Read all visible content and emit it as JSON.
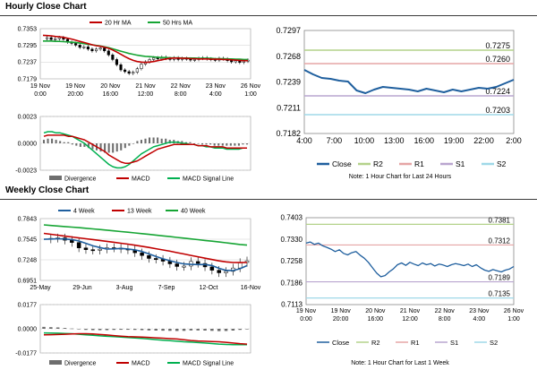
{
  "titles": {
    "hourly": "Hourly Close Chart",
    "weekly": "Weekly Close Chart"
  },
  "colors": {
    "close": "#1f5f9e",
    "ma20": "#c00000",
    "ma50": "#16a534",
    "candle": "#000000",
    "macd": "#00b050",
    "signal": "#c00000",
    "r2": "#b4d28a",
    "r1": "#e5a5a5",
    "s1": "#b9a5cf",
    "s2": "#9fd8e8",
    "hist": "#6d6d6d",
    "grid": "#cfcfcf"
  },
  "chart_data": [
    {
      "id": "hourly-price",
      "type": "line",
      "legend": [
        "20 Hr MA",
        "50 Hrs MA"
      ],
      "yticks": [
        "0.7353",
        "0.7295",
        "0.7237",
        "0.7179"
      ],
      "ylim": [
        0.7179,
        0.7353
      ],
      "xticks": [
        [
          "19 Nov",
          "0:00"
        ],
        [
          "19 Nov",
          "20:00"
        ],
        [
          "20 Nov",
          "16:00"
        ],
        [
          "21 Nov",
          "12:00"
        ],
        [
          "22 Nov",
          "8:00"
        ],
        [
          "23 Nov",
          "4:00"
        ],
        [
          "26 Nov",
          "1:00"
        ]
      ],
      "series": [
        {
          "name": "Close",
          "values": [
            0.7318,
            0.7322,
            0.7315,
            0.7318,
            0.7322,
            0.7316,
            0.7306,
            0.7302,
            0.7296,
            0.7288,
            0.729,
            0.7282,
            0.7276,
            0.7282,
            0.7286,
            0.7276,
            0.7262,
            0.7246,
            0.7228,
            0.721,
            0.7204,
            0.7198,
            0.7202,
            0.7214,
            0.723,
            0.7238,
            0.7246,
            0.7252,
            0.7248,
            0.7254,
            0.725,
            0.7246,
            0.7252,
            0.7246,
            0.725,
            0.7248,
            0.7244,
            0.7246,
            0.725,
            0.7252,
            0.7248,
            0.7246,
            0.7244,
            0.725,
            0.7248,
            0.7242,
            0.7238,
            0.7242,
            0.7236,
            0.724,
            0.7244
          ]
        },
        {
          "name": "20 Hr MA",
          "values": [
            0.733,
            0.7329,
            0.7328,
            0.7326,
            0.7325,
            0.7323,
            0.732,
            0.7317,
            0.7313,
            0.7309,
            0.7305,
            0.7301,
            0.7297,
            0.7294,
            0.7292,
            0.7289,
            0.7285,
            0.7279,
            0.7272,
            0.7264,
            0.7256,
            0.7249,
            0.7243,
            0.7239,
            0.7237,
            0.7236,
            0.7237,
            0.7239,
            0.7242,
            0.7245,
            0.7248,
            0.725,
            0.7251,
            0.7251,
            0.725,
            0.725,
            0.7249,
            0.7249,
            0.7248,
            0.7248,
            0.7248,
            0.7247,
            0.7247,
            0.7247,
            0.7246,
            0.7246,
            0.7245,
            0.7244,
            0.7243,
            0.7242,
            0.7242
          ]
        },
        {
          "name": "50 Hrs MA",
          "values": [
            0.731,
            0.731,
            0.731,
            0.7309,
            0.7309,
            0.7308,
            0.7307,
            0.7306,
            0.7305,
            0.7303,
            0.7301,
            0.7299,
            0.7297,
            0.7295,
            0.7293,
            0.729,
            0.7287,
            0.7283,
            0.7279,
            0.7275,
            0.7271,
            0.7267,
            0.7264,
            0.7261,
            0.7259,
            0.7257,
            0.7256,
            0.7255,
            0.7254,
            0.7253,
            0.7253,
            0.7252,
            0.7252,
            0.7252,
            0.7251,
            0.7251,
            0.7251,
            0.7251,
            0.725,
            0.725,
            0.725,
            0.725,
            0.7249,
            0.7249,
            0.7249,
            0.7248,
            0.7248,
            0.7247,
            0.7247,
            0.7246,
            0.7246
          ]
        }
      ]
    },
    {
      "id": "hourly-macd",
      "type": "bar",
      "legend": [
        "Divergence",
        "MACD",
        "MACD Signal Line"
      ],
      "yticks": [
        "0.0023",
        "0.0000",
        "-0.0023"
      ],
      "ylim": [
        -0.0023,
        0.0023
      ],
      "series": [
        {
          "name": "Divergence",
          "values": [
            0.0003,
            0.0004,
            0.0004,
            0.0003,
            0.0002,
            0.0001,
            0.0001,
            -0.0001,
            -0.0002,
            -0.0003,
            -0.0003,
            -0.0004,
            -0.0005,
            -0.0006,
            -0.0007,
            -0.0008,
            -0.0008,
            -0.0008,
            -0.0007,
            -0.0006,
            -0.0004,
            -0.0002,
            0.0,
            0.0002,
            0.0003,
            0.0004,
            0.0005,
            0.0005,
            0.0005,
            0.0004,
            0.0004,
            0.0003,
            0.0003,
            0.0002,
            0.0002,
            0.0001,
            0.0001,
            0.0,
            0.0,
            -0.0001,
            -0.0001,
            -0.0001,
            -0.0002,
            -0.0002,
            -0.0002,
            -0.0002,
            -0.0002,
            -0.0002,
            -0.0002,
            -0.0001,
            -0.0001
          ]
        },
        {
          "name": "MACD",
          "values": [
            0.0009,
            0.001,
            0.001,
            0.0009,
            0.0009,
            0.0008,
            0.0007,
            0.0006,
            0.0004,
            0.0002,
            0.0,
            -0.0003,
            -0.0006,
            -0.0009,
            -0.0012,
            -0.0015,
            -0.0018,
            -0.002,
            -0.0021,
            -0.0021,
            -0.002,
            -0.0018,
            -0.0015,
            -0.0012,
            -0.0009,
            -0.0007,
            -0.0005,
            -0.0003,
            -0.0002,
            -0.0001,
            0.0,
            0.0001,
            0.0001,
            0.0001,
            0.0,
            0.0,
            -0.0001,
            -0.0001,
            -0.0002,
            -0.0002,
            -0.0003,
            -0.0003,
            -0.0004,
            -0.0004,
            -0.0004,
            -0.0005,
            -0.0005,
            -0.0005,
            -0.0005,
            -0.0004,
            -0.0004
          ]
        },
        {
          "name": "MACD Signal Line",
          "values": [
            0.0006,
            0.0007,
            0.0007,
            0.0007,
            0.0007,
            0.0007,
            0.0006,
            0.0006,
            0.0005,
            0.0004,
            0.0003,
            0.0001,
            -0.0001,
            -0.0003,
            -0.0005,
            -0.0007,
            -0.001,
            -0.0012,
            -0.0014,
            -0.0016,
            -0.0017,
            -0.0017,
            -0.0016,
            -0.0015,
            -0.0013,
            -0.0011,
            -0.0009,
            -0.0007,
            -0.0005,
            -0.0004,
            -0.0003,
            -0.0002,
            -0.0001,
            -0.0001,
            -0.0001,
            -0.0001,
            -0.0001,
            -0.0001,
            -0.0002,
            -0.0002,
            -0.0002,
            -0.0003,
            -0.0003,
            -0.0003,
            -0.0003,
            -0.0004,
            -0.0004,
            -0.0004,
            -0.0004,
            -0.0004,
            -0.0004
          ]
        }
      ]
    },
    {
      "id": "hourly-24h",
      "type": "line",
      "yticks": [
        "0.7297",
        "0.7268",
        "0.7239",
        "0.7211",
        "0.7182"
      ],
      "ylim": [
        0.7182,
        0.7297
      ],
      "xticks": [
        "4:00",
        "7:00",
        "10:00",
        "13:00",
        "16:00",
        "19:00",
        "22:00",
        "2:00"
      ],
      "levels": [
        {
          "name": "R2",
          "value": 0.7275,
          "label": "0.7275"
        },
        {
          "name": "R1",
          "value": 0.726,
          "label": "0.7260"
        },
        {
          "name": "S1",
          "value": 0.7224,
          "label": "0.7224"
        },
        {
          "name": "S2",
          "value": 0.7203,
          "label": "0.7203"
        }
      ],
      "legend": [
        "Close",
        "R2",
        "R1",
        "S1",
        "S2"
      ],
      "note": "Note: 1 Hour Chart for Last 24 Hours",
      "series": [
        {
          "name": "Close",
          "values": [
            0.7253,
            0.7248,
            0.7244,
            0.7243,
            0.7241,
            0.724,
            0.723,
            0.7227,
            0.7231,
            0.7234,
            0.7233,
            0.7232,
            0.7231,
            0.7229,
            0.7232,
            0.723,
            0.7228,
            0.7231,
            0.7229,
            0.7231,
            0.7233,
            0.7232,
            0.7234,
            0.7238,
            0.7242
          ]
        }
      ]
    },
    {
      "id": "weekly-price",
      "type": "line",
      "legend": [
        "4 Week",
        "13 Week",
        "40 Week"
      ],
      "yticks": [
        "0.7843",
        "0.7545",
        "0.7248",
        "0.6951"
      ],
      "ylim": [
        0.6951,
        0.7843
      ],
      "xticks": [
        "25-May",
        "29-Jun",
        "3-Aug",
        "7-Sep",
        "12-Oct",
        "16-Nov"
      ],
      "series": [
        {
          "name": "Close",
          "values": [
            0.7548,
            0.7558,
            0.7565,
            0.7531,
            0.7498,
            0.742,
            0.7395,
            0.7386,
            0.7402,
            0.7423,
            0.7418,
            0.7406,
            0.739,
            0.735,
            0.731,
            0.7268,
            0.7256,
            0.7228,
            0.719,
            0.7152,
            0.7158,
            0.7224,
            0.7196,
            0.7146,
            0.7098,
            0.7061,
            0.7082,
            0.713,
            0.721,
            0.7234
          ]
        },
        {
          "name": "4 Week",
          "values": [
            0.7545,
            0.7548,
            0.7552,
            0.7548,
            0.7541,
            0.752,
            0.7486,
            0.745,
            0.7425,
            0.7404,
            0.7406,
            0.7412,
            0.7405,
            0.7392,
            0.7369,
            0.7334,
            0.7296,
            0.7262,
            0.7236,
            0.7209,
            0.7189,
            0.7183,
            0.718,
            0.7181,
            0.7166,
            0.7125,
            0.7096,
            0.7092,
            0.712,
            0.7164
          ]
        },
        {
          "name": "13 Week",
          "values": [
            0.763,
            0.7617,
            0.7604,
            0.759,
            0.7578,
            0.7565,
            0.7552,
            0.754,
            0.7528,
            0.7515,
            0.7502,
            0.7488,
            0.7474,
            0.7459,
            0.7444,
            0.7427,
            0.7409,
            0.7391,
            0.7372,
            0.7352,
            0.7332,
            0.7312,
            0.7292,
            0.7272,
            0.7252,
            0.7233,
            0.7218,
            0.721,
            0.7208,
            0.721
          ]
        },
        {
          "name": "40 Week",
          "values": [
            0.7752,
            0.7744,
            0.7736,
            0.7728,
            0.772,
            0.7712,
            0.7703,
            0.7694,
            0.7685,
            0.7676,
            0.7666,
            0.7656,
            0.7646,
            0.7636,
            0.7626,
            0.7615,
            0.7605,
            0.7594,
            0.7583,
            0.7572,
            0.7561,
            0.755,
            0.7539,
            0.7528,
            0.7517,
            0.7506,
            0.7494,
            0.7482,
            0.747,
            0.746
          ]
        }
      ]
    },
    {
      "id": "weekly-macd",
      "type": "bar",
      "legend": [
        "Divergence",
        "MACD",
        "MACD Signal Line"
      ],
      "yticks": [
        "0.0177",
        "0.0000",
        "-0.0177"
      ],
      "ylim": [
        -0.0177,
        0.0177
      ],
      "series": [
        {
          "name": "Divergence",
          "values": [
            0.0014,
            0.0012,
            0.001,
            0.0006,
            0.0002,
            -0.0004,
            -0.0008,
            -0.001,
            -0.001,
            -0.001,
            -0.0008,
            -0.0007,
            -0.0007,
            -0.0008,
            -0.001,
            -0.0012,
            -0.0013,
            -0.0014,
            -0.0015,
            -0.0016,
            -0.0015,
            -0.0012,
            -0.0012,
            -0.0013,
            -0.0015,
            -0.0017,
            -0.0016,
            -0.0013,
            -0.0008,
            -0.0004
          ]
        },
        {
          "name": "MACD",
          "values": [
            -0.003,
            -0.0031,
            -0.0032,
            -0.0034,
            -0.0036,
            -0.004,
            -0.0044,
            -0.0048,
            -0.0052,
            -0.0055,
            -0.0058,
            -0.0061,
            -0.0064,
            -0.0067,
            -0.0071,
            -0.0075,
            -0.0079,
            -0.0083,
            -0.0087,
            -0.0091,
            -0.0095,
            -0.0098,
            -0.0101,
            -0.0104,
            -0.0108,
            -0.0112,
            -0.0115,
            -0.0117,
            -0.0117,
            -0.0116
          ]
        },
        {
          "name": "MACD Signal Line",
          "values": [
            -0.0044,
            -0.0043,
            -0.0042,
            -0.004,
            -0.0038,
            -0.0036,
            -0.0036,
            -0.0038,
            -0.0042,
            -0.0045,
            -0.005,
            -0.0054,
            -0.0057,
            -0.0059,
            -0.0061,
            -0.0063,
            -0.0066,
            -0.0069,
            -0.0072,
            -0.0075,
            -0.008,
            -0.0086,
            -0.0089,
            -0.0091,
            -0.0093,
            -0.0095,
            -0.0099,
            -0.0104,
            -0.0109,
            -0.0112
          ]
        }
      ]
    },
    {
      "id": "weekly-1w",
      "type": "line",
      "yticks": [
        "0.7403",
        "0.7330",
        "0.7258",
        "0.7186",
        "0.7113"
      ],
      "ylim": [
        0.7113,
        0.7403
      ],
      "xticks": [
        [
          "19 Nov",
          "0:00"
        ],
        [
          "19 Nov",
          "20:00"
        ],
        [
          "20 Nov",
          "16:00"
        ],
        [
          "21 Nov",
          "12:00"
        ],
        [
          "22 Nov",
          "8:00"
        ],
        [
          "23 Nov",
          "4:00"
        ],
        [
          "26 Nov",
          "1:00"
        ]
      ],
      "levels": [
        {
          "name": "R2",
          "value": 0.7381,
          "label": "0.7381"
        },
        {
          "name": "R1",
          "value": 0.7312,
          "label": "0.7312"
        },
        {
          "name": "S1",
          "value": 0.7189,
          "label": "0.7189"
        },
        {
          "name": "S2",
          "value": 0.7135,
          "label": "0.7135"
        }
      ],
      "legend": [
        "Close",
        "R2",
        "R1",
        "S1",
        "S2"
      ],
      "note": "Note: 1 Hour Chart for Last 1 Week",
      "series": [
        {
          "name": "Close",
          "values": [
            0.7318,
            0.7322,
            0.7314,
            0.7318,
            0.7309,
            0.7304,
            0.7298,
            0.729,
            0.7296,
            0.7284,
            0.7279,
            0.7286,
            0.729,
            0.7278,
            0.7268,
            0.7254,
            0.7236,
            0.7218,
            0.7206,
            0.721,
            0.7222,
            0.7232,
            0.7246,
            0.7252,
            0.7244,
            0.7254,
            0.7248,
            0.7243,
            0.7252,
            0.7246,
            0.725,
            0.7242,
            0.7248,
            0.7245,
            0.724,
            0.7246,
            0.725,
            0.7247,
            0.7243,
            0.7248,
            0.724,
            0.7246,
            0.7236,
            0.7228,
            0.7224,
            0.723,
            0.7226,
            0.7222,
            0.7228,
            0.7232,
            0.724
          ]
        }
      ]
    }
  ]
}
